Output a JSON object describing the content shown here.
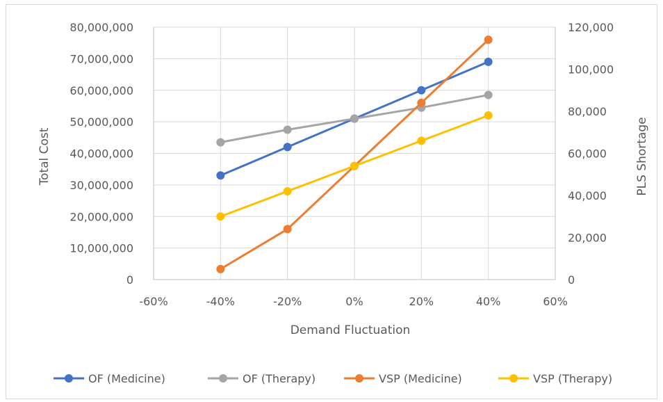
{
  "chart_data": {
    "type": "line",
    "x_label": "Demand Fluctuation",
    "x_ticks": [
      "-60%",
      "-40%",
      "-20%",
      "0%",
      "20%",
      "40%",
      "60%"
    ],
    "x_values": [
      -40,
      -20,
      0,
      20,
      40
    ],
    "xlim": [
      -60,
      60
    ],
    "y_left": {
      "label": "Total Cost",
      "lim": [
        0,
        80000000
      ],
      "ticks": [
        "0",
        "10,000,000",
        "20,000,000",
        "30,000,000",
        "40,000,000",
        "50,000,000",
        "60,000,000",
        "70,000,000",
        "80,000,000"
      ]
    },
    "y_right": {
      "label": "PLS Shortage",
      "lim": [
        0,
        120000
      ],
      "ticks": [
        "0",
        "20,000",
        "40,000",
        "60,000",
        "80,000",
        "100,000",
        "120,000"
      ]
    },
    "grid": true,
    "legend_position": "bottom",
    "series": [
      {
        "name": "OF (Medicine)",
        "axis": "left",
        "color": "#4472c4",
        "values": [
          33000000,
          42000000,
          51000000,
          60000000,
          69000000
        ]
      },
      {
        "name": "OF (Therapy)",
        "axis": "left",
        "color": "#a5a5a5",
        "values": [
          43500000,
          47500000,
          51000000,
          54500000,
          58500000
        ]
      },
      {
        "name": "VSP (Medicine)",
        "axis": "right",
        "color": "#ed7d31",
        "values": [
          5000,
          24000,
          54000,
          84000,
          114000
        ]
      },
      {
        "name": "VSP (Therapy)",
        "axis": "right",
        "color": "#ffc000",
        "values": [
          30000,
          42000,
          54000,
          66000,
          78000
        ]
      }
    ]
  }
}
